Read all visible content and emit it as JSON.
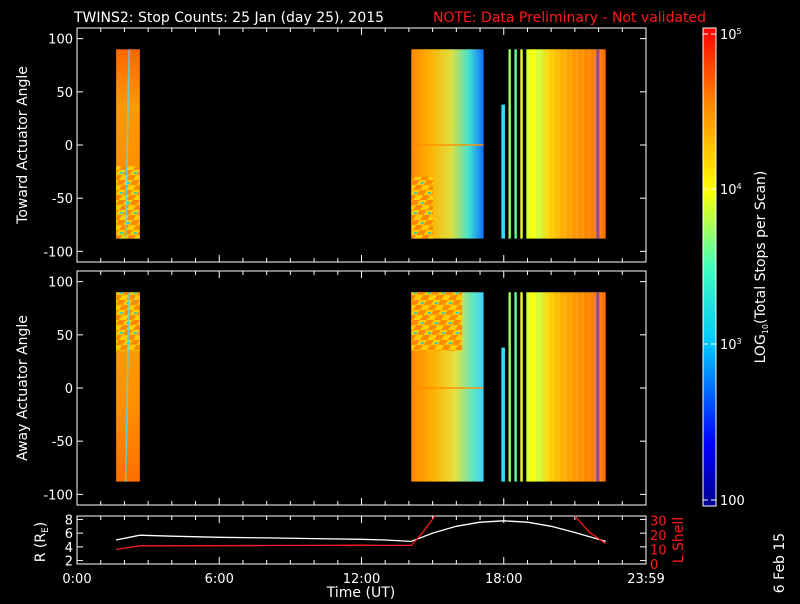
{
  "header": {
    "title": "TWINS2: Stop Counts: 25 Jan (day  25), 2015",
    "note": "NOTE: Data Preliminary - Not validated"
  },
  "date_stamp": "6 Feb 15",
  "colorbar": {
    "label": "LOG10(Total Stops per Scan)",
    "label_prefix": "LOG",
    "label_sub": "10",
    "label_suffix": "(Total Stops per Scan)",
    "ticks": [
      {
        "label": "10",
        "exp": "5"
      },
      {
        "label": "10",
        "exp": "4"
      },
      {
        "label": "10",
        "exp": "3"
      },
      {
        "label": "100",
        "exp": ""
      }
    ]
  },
  "chart_data": [
    {
      "type": "heatmap",
      "ylabel": "Toward Actuator Angle",
      "ylim": [
        -110,
        110
      ],
      "yticks": [
        "100",
        "50",
        "0",
        "-50",
        "-100"
      ],
      "xlim": [
        0,
        24
      ],
      "data_intervals_ut_hours": [
        [
          1.65,
          2.65
        ],
        [
          14.1,
          17.15
        ],
        [
          17.9,
          18.05
        ],
        [
          18.2,
          18.3
        ],
        [
          18.45,
          18.55
        ],
        [
          18.7,
          18.8
        ],
        [
          18.95,
          22.3
        ]
      ],
      "angle_range": [
        -88,
        90
      ]
    },
    {
      "type": "heatmap",
      "ylabel": "Away Actuator Angle",
      "ylim": [
        -110,
        110
      ],
      "yticks": [
        "100",
        "50",
        "0",
        "-50",
        "-100"
      ],
      "xlim": [
        0,
        24
      ],
      "data_intervals_ut_hours": [
        [
          1.65,
          2.65
        ],
        [
          14.1,
          17.15
        ],
        [
          17.9,
          18.05
        ],
        [
          18.2,
          18.3
        ],
        [
          18.45,
          18.55
        ],
        [
          18.7,
          18.8
        ],
        [
          18.95,
          22.3
        ]
      ],
      "angle_range": [
        -88,
        90
      ]
    },
    {
      "type": "line",
      "xlabel": "Time (UT)",
      "xticks": [
        "0:00",
        "6:00",
        "12:00",
        "18:00",
        "23:59"
      ],
      "ylabel_left": "R (RE)",
      "ylabel_left_text": "R (R",
      "ylabel_left_sub": "E",
      "ylabel_left_end": ")",
      "ylim_left": [
        1.5,
        8.5
      ],
      "yticks_left": [
        "8",
        "6",
        "4",
        "2"
      ],
      "ylabel_right": "L Shell",
      "ylim_right": [
        0,
        33
      ],
      "yticks_right": [
        "30",
        "20",
        "10",
        "0"
      ],
      "series": [
        {
          "name": "R (RE)",
          "color": "#ffffff",
          "x": [
            1.65,
            2.65,
            4,
            6,
            8,
            10,
            12,
            13,
            14.1,
            15,
            16,
            17,
            18,
            19,
            20,
            21,
            22.3
          ],
          "y": [
            5.0,
            5.7,
            5.55,
            5.4,
            5.3,
            5.2,
            5.1,
            5.0,
            4.8,
            6.0,
            7.0,
            7.6,
            7.8,
            7.6,
            7.0,
            6.1,
            4.8
          ]
        },
        {
          "name": "L Shell",
          "color": "#ff1a1a",
          "x": [
            1.65,
            2.65,
            4,
            6,
            8,
            10,
            12,
            13,
            14.1,
            14.6,
            15.1
          ],
          "y": [
            10.0,
            12.5,
            12.5,
            12.6,
            12.7,
            12.8,
            12.9,
            12.8,
            12.8,
            22,
            33
          ]
        },
        {
          "name": "L Shell (end)",
          "color": "#ff1a1a",
          "x": [
            21.0,
            21.6,
            22.3
          ],
          "y": [
            33,
            22,
            14
          ]
        }
      ]
    }
  ]
}
